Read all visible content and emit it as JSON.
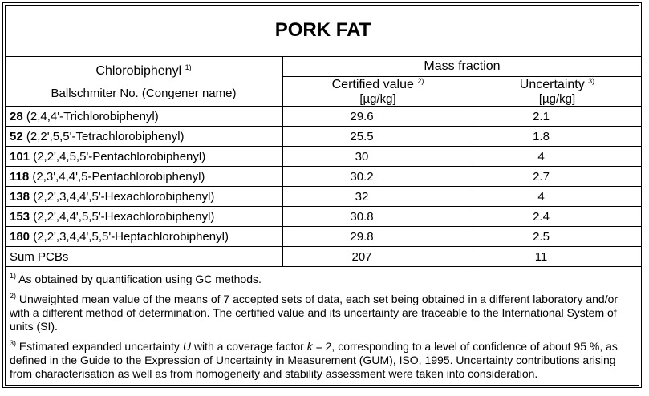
{
  "title": "PORK FAT",
  "header": {
    "col1_line1": "Chlorobiphenyl",
    "col1_line1_sup": "1)",
    "col1_line2": "Ballschmiter No. (Congener name)",
    "group": "Mass fraction",
    "certified": "Certified value",
    "certified_sup": "2)",
    "certified_unit": "[µg/kg]",
    "uncertainty": "Uncertainty",
    "uncertainty_sup": "3)",
    "uncertainty_unit": "[µg/kg]"
  },
  "rows": [
    {
      "no": "28",
      "name": "(2,4,4'-Trichlorobiphenyl)",
      "value": "29.6",
      "unc": "2.1"
    },
    {
      "no": "52",
      "name": "(2,2',5,5'-Tetrachlorobiphenyl)",
      "value": "25.5",
      "unc": "1.8"
    },
    {
      "no": "101",
      "name": "(2,2',4,5,5'-Pentachlorobiphenyl)",
      "value": "30",
      "unc": "4"
    },
    {
      "no": "118",
      "name": "(2,3',4,4',5-Pentachlorobiphenyl)",
      "value": "30.2",
      "unc": "2.7"
    },
    {
      "no": "138",
      "name": "(2,2',3,4,4',5'-Hexachlorobiphenyl)",
      "value": "32",
      "unc": "4"
    },
    {
      "no": "153",
      "name": "(2,2',4,4',5,5'-Hexachlorobiphenyl)",
      "value": "30.8",
      "unc": "2.4"
    },
    {
      "no": "180",
      "name": "(2,2',3,4,4',5,5'-Heptachlorobiphenyl)",
      "value": "29.8",
      "unc": "2.5"
    }
  ],
  "sum": {
    "label": "Sum PCBs",
    "value": "207",
    "unc": "11"
  },
  "footnotes": [
    {
      "mark": "1)",
      "text": "As obtained by quantification using GC methods."
    },
    {
      "mark": "2)",
      "text": "Unweighted mean value of the means of 7 accepted sets of data, each set being obtained in a different laboratory and/or with a different method of determination. The certified value and its uncertainty are traceable to the International System of units (SI)."
    },
    {
      "mark": "3)",
      "text_a": "Estimated expanded uncertainty ",
      "U": "U",
      "text_b": " with a coverage factor ",
      "k": "k",
      "text_c": " = 2, corresponding to a level of confidence of about 95 %, as defined in the Guide to the Expression of Uncertainty in Measurement (GUM), ISO, 1995. Uncertainty contributions arising from characterisation as well as from homogeneity and stability assessment were taken into consideration."
    }
  ]
}
